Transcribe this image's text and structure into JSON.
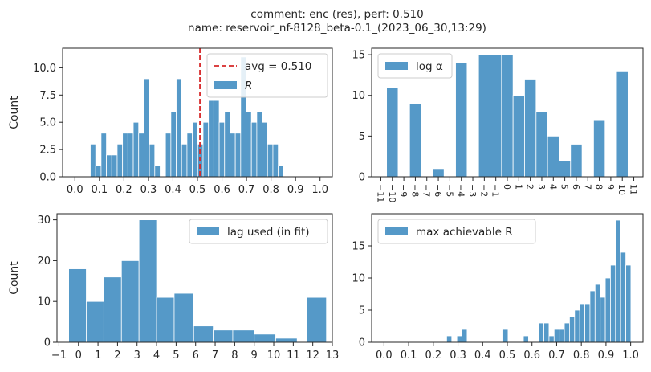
{
  "title_line1": "comment: enc (res),  perf: 0.510",
  "title_line2": "name: reservoir_nf-8128_beta-0.1_(2023_06_30,13:29)",
  "colors": {
    "bar": "#5599c8",
    "avg_line": "#d62728",
    "axis": "#262626"
  },
  "chart_data": [
    {
      "type": "bar",
      "id": "R",
      "ylabel": "Count",
      "legend": {
        "placement": "top-right",
        "entries": [
          "avg = 0.510",
          "R"
        ]
      },
      "avg_line": {
        "x": 0.51,
        "label": "avg = 0.510"
      },
      "xlim": [
        -0.05,
        1.05
      ],
      "ylim": [
        0,
        11.8
      ],
      "xticks": [
        0.0,
        0.1,
        0.2,
        0.3,
        0.4,
        0.5,
        0.6,
        0.7,
        0.8,
        0.9,
        1.0
      ],
      "xticklabels": [
        "0.0",
        "0.1",
        "0.2",
        "0.3",
        "0.4",
        "0.5",
        "0.6",
        "0.7",
        "0.8",
        "0.9",
        "1.0"
      ],
      "yticks": [
        0.0,
        2.5,
        5.0,
        7.5,
        10.0
      ],
      "yticklabels": [
        "0.0",
        "2.5",
        "5.0",
        "7.5",
        "10.0"
      ],
      "bin_start": 0.063,
      "bin_width": 0.0219,
      "values": [
        3,
        1,
        4,
        2,
        2,
        3,
        4,
        4,
        5,
        4,
        9,
        3,
        1,
        0,
        4,
        6,
        9,
        3,
        4,
        5,
        3,
        5,
        7,
        7,
        5,
        6,
        4,
        4,
        11,
        6,
        5,
        6,
        5,
        3,
        3,
        1
      ]
    },
    {
      "type": "bar",
      "id": "log_alpha",
      "ylabel": "",
      "legend": {
        "placement": "top-left",
        "entries": [
          "log α"
        ]
      },
      "xlim": [
        -11.8,
        11.8
      ],
      "ylim": [
        0,
        15.8
      ],
      "xticks": [
        -11,
        -10,
        -9,
        -8,
        -7,
        -6,
        -5,
        -4,
        -3,
        -2,
        -1,
        0,
        1,
        2,
        3,
        4,
        5,
        6,
        7,
        8,
        9,
        10,
        11
      ],
      "xticklabels": [
        "−11",
        "−10",
        "−9",
        "−8",
        "−7",
        "−6",
        "−5",
        "−4",
        "−3",
        "−2",
        "−1",
        "0",
        "1",
        "2",
        "3",
        "4",
        "5",
        "6",
        "7",
        "8",
        "9",
        "10",
        "11"
      ],
      "yticks": [
        0,
        5,
        10,
        15
      ],
      "yticklabels": [
        "0",
        "5",
        "10",
        "15"
      ],
      "bins": [
        {
          "x": -10,
          "v": 11
        },
        {
          "x": -8,
          "v": 9
        },
        {
          "x": -6,
          "v": 1
        },
        {
          "x": -4,
          "v": 14
        },
        {
          "x": -2,
          "v": 15
        },
        {
          "x": -1,
          "v": 15
        },
        {
          "x": 0,
          "v": 15
        },
        {
          "x": 1,
          "v": 10
        },
        {
          "x": 2,
          "v": 12
        },
        {
          "x": 3,
          "v": 8
        },
        {
          "x": 4,
          "v": 5
        },
        {
          "x": 5,
          "v": 2
        },
        {
          "x": 6,
          "v": 4
        },
        {
          "x": 8,
          "v": 7
        },
        {
          "x": 10,
          "v": 13
        }
      ]
    },
    {
      "type": "bar",
      "id": "lag",
      "ylabel": "Count",
      "legend": {
        "placement": "top-right",
        "entries": [
          "lag used (in fit)"
        ]
      },
      "xlim": [
        -1.1,
        13.0
      ],
      "ylim": [
        0,
        31.5
      ],
      "xticks": [
        -1,
        0,
        1,
        2,
        3,
        4,
        5,
        6,
        7,
        8,
        9,
        10,
        11,
        12,
        13
      ],
      "xticklabels": [
        "−1",
        "0",
        "1",
        "2",
        "3",
        "4",
        "5",
        "6",
        "7",
        "8",
        "9",
        "10",
        "11",
        "12",
        "13"
      ],
      "yticks": [
        0,
        10,
        20,
        30
      ],
      "yticklabels": [
        "0",
        "10",
        "20",
        "30"
      ],
      "bins": [
        {
          "x0": -0.5,
          "w": 0.9,
          "v": 18
        },
        {
          "x0": 0.4,
          "w": 0.9,
          "v": 10
        },
        {
          "x0": 1.3,
          "w": 0.9,
          "v": 16
        },
        {
          "x0": 2.2,
          "w": 0.9,
          "v": 20
        },
        {
          "x0": 3.1,
          "w": 0.9,
          "v": 30
        },
        {
          "x0": 4.0,
          "w": 0.9,
          "v": 11
        },
        {
          "x0": 4.9,
          "w": 1.0,
          "v": 12
        },
        {
          "x0": 5.9,
          "w": 1.0,
          "v": 4
        },
        {
          "x0": 6.9,
          "w": 1.0,
          "v": 3
        },
        {
          "x0": 7.9,
          "w": 1.1,
          "v": 3
        },
        {
          "x0": 9.0,
          "w": 1.1,
          "v": 2
        },
        {
          "x0": 10.1,
          "w": 1.1,
          "v": 1
        },
        {
          "x0": 11.7,
          "w": 1.0,
          "v": 11
        }
      ]
    },
    {
      "type": "bar",
      "id": "max_R",
      "ylabel": "",
      "legend": {
        "placement": "top-left",
        "entries": [
          "max achievable R"
        ]
      },
      "xlim": [
        -0.05,
        1.05
      ],
      "ylim": [
        0,
        20.0
      ],
      "xticks": [
        0.0,
        0.1,
        0.2,
        0.3,
        0.4,
        0.5,
        0.6,
        0.7,
        0.8,
        0.9,
        1.0
      ],
      "xticklabels": [
        "0.0",
        "0.1",
        "0.2",
        "0.3",
        "0.4",
        "0.5",
        "0.6",
        "0.7",
        "0.8",
        "0.9",
        "1.0"
      ],
      "yticks": [
        0,
        5,
        10,
        15
      ],
      "yticklabels": [
        "0",
        "5",
        "10",
        "15"
      ],
      "bin_start": 0.254,
      "bin_width": 0.02075,
      "values": [
        1,
        0,
        1,
        2,
        0,
        0,
        0,
        0,
        0,
        0,
        0,
        2,
        0,
        0,
        0,
        1,
        0,
        0,
        3,
        3,
        1,
        2,
        2,
        3,
        4,
        5,
        6,
        6,
        8,
        9,
        7,
        10,
        12,
        19,
        14,
        12
      ]
    }
  ]
}
